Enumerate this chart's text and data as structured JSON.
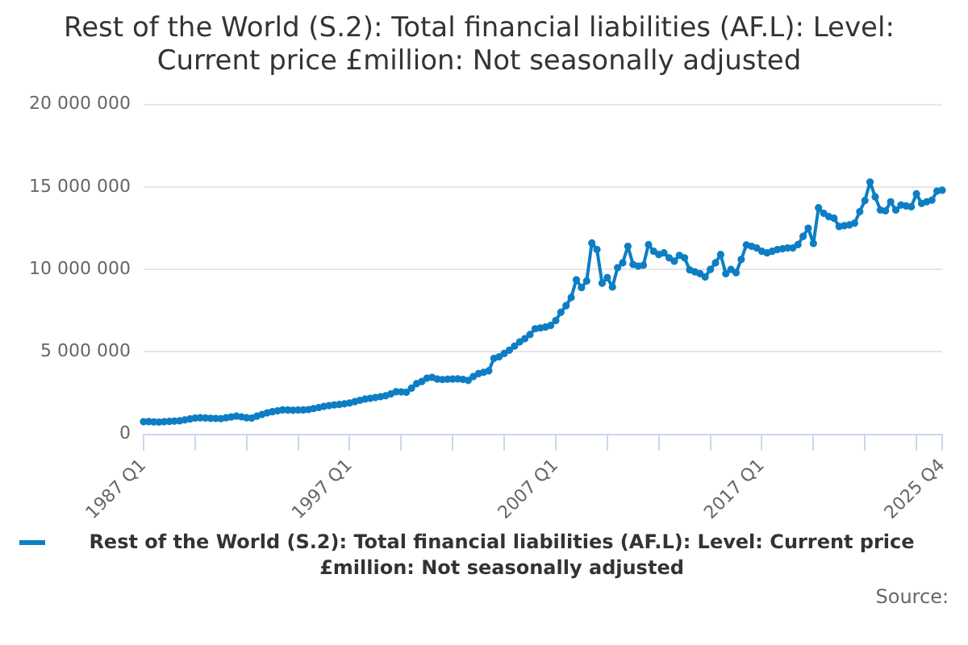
{
  "chart_data": {
    "type": "line",
    "title": "Rest of the World (S.2): Total financial liabilities (AF.L): Level: Current price £million: Not seasonally adjusted",
    "categories": [
      "1987 Q1",
      null,
      null,
      null,
      null,
      null,
      null,
      null,
      null,
      null,
      null,
      null,
      null,
      null,
      null,
      null,
      null,
      null,
      null,
      null,
      null,
      null,
      null,
      null,
      null,
      null,
      null,
      null,
      null,
      null,
      null,
      null,
      null,
      null,
      null,
      null,
      null,
      null,
      null,
      null,
      "1997 Q1",
      null,
      null,
      null,
      null,
      null,
      null,
      null,
      null,
      null,
      null,
      null,
      null,
      null,
      null,
      null,
      null,
      null,
      null,
      null,
      null,
      null,
      null,
      null,
      null,
      null,
      null,
      null,
      null,
      null,
      null,
      null,
      null,
      null,
      null,
      null,
      null,
      null,
      null,
      null,
      "2007 Q1",
      null,
      null,
      null,
      null,
      null,
      null,
      null,
      null,
      null,
      null,
      null,
      null,
      null,
      null,
      null,
      null,
      null,
      null,
      null,
      null,
      null,
      null,
      null,
      null,
      null,
      null,
      null,
      null,
      null,
      null,
      null,
      null,
      null,
      null,
      null,
      null,
      null,
      null,
      null,
      "2017 Q1",
      null,
      null,
      null,
      null,
      null,
      null,
      null,
      null,
      null,
      null,
      null,
      null,
      null,
      null,
      null,
      null,
      null,
      null,
      null,
      null,
      null,
      null,
      null,
      null,
      null,
      null,
      null,
      null,
      null,
      null,
      null,
      null,
      null,
      null,
      "2025 Q4"
    ],
    "series": [
      {
        "name": "Rest of the World (S.2): Total financial liabilities (AF.L): Level: Current price £million: Not seasonally adjusted",
        "color": "#0d7ec4",
        "values": [
          760000,
          770000,
          750000,
          740000,
          760000,
          780000,
          800000,
          820000,
          870000,
          930000,
          980000,
          1000000,
          990000,
          970000,
          960000,
          950000,
          1000000,
          1050000,
          1100000,
          1060000,
          1000000,
          980000,
          1100000,
          1200000,
          1300000,
          1370000,
          1420000,
          1480000,
          1470000,
          1460000,
          1470000,
          1480000,
          1500000,
          1560000,
          1620000,
          1690000,
          1740000,
          1780000,
          1810000,
          1850000,
          1900000,
          1980000,
          2060000,
          2140000,
          2180000,
          2230000,
          2280000,
          2340000,
          2450000,
          2580000,
          2570000,
          2550000,
          2800000,
          3070000,
          3200000,
          3400000,
          3450000,
          3350000,
          3320000,
          3340000,
          3350000,
          3360000,
          3330000,
          3270000,
          3500000,
          3680000,
          3760000,
          3850000,
          4600000,
          4700000,
          4900000,
          5100000,
          5350000,
          5600000,
          5800000,
          6050000,
          6400000,
          6450000,
          6500000,
          6600000,
          6900000,
          7400000,
          7800000,
          8300000,
          9370000,
          8900000,
          9300000,
          11600000,
          11200000,
          9160000,
          9500000,
          8930000,
          10100000,
          10400000,
          11400000,
          10300000,
          10200000,
          10250000,
          11500000,
          11100000,
          10900000,
          11000000,
          10700000,
          10500000,
          10850000,
          10700000,
          9970000,
          9850000,
          9740000,
          9540000,
          10000000,
          10400000,
          10900000,
          9740000,
          10000000,
          9800000,
          10600000,
          11480000,
          11400000,
          11300000,
          11100000,
          11000000,
          11100000,
          11200000,
          11250000,
          11300000,
          11300000,
          11500000,
          12000000,
          12500000,
          11570000,
          13740000,
          13400000,
          13200000,
          13100000,
          12600000,
          12650000,
          12700000,
          12800000,
          13500000,
          14170000,
          15300000,
          14400000,
          13600000,
          13550000,
          14100000,
          13600000,
          13900000,
          13850000,
          13800000,
          14580000,
          14000000,
          14100000,
          14200000,
          14750000,
          14800000
        ]
      }
    ],
    "ylim": [
      0,
      20000000
    ],
    "yticks": [
      0,
      {
        "value": 5000000,
        "label": "5 000 000"
      },
      {
        "value": 10000000,
        "label": "10 000 000"
      },
      {
        "value": 15000000,
        "label": "15 000 000"
      },
      {
        "value": 20000000,
        "label": "20 000 000"
      }
    ],
    "grid": "y",
    "legend": "bottom",
    "marker": "circle",
    "line_style": "solid",
    "annotations": [
      "Source:"
    ]
  }
}
